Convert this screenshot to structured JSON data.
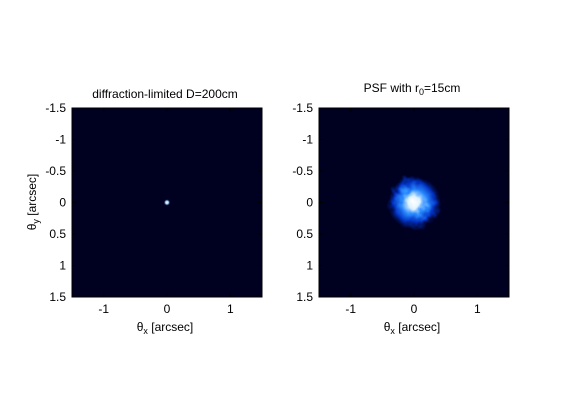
{
  "chart_data": [
    {
      "type": "heatmap",
      "title": "diffraction-limited D=200cm",
      "xlabel": "θx [arcsec]",
      "ylabel": "θy [arcsec]",
      "xlim": [
        -1.5,
        1.5
      ],
      "ylim": [
        -1.5,
        1.5
      ],
      "y_reversed": true,
      "x_ticks": [
        "-1",
        "0",
        "1"
      ],
      "y_ticks": [
        "-1.5",
        "-1",
        "-0.5",
        "0",
        "0.5",
        "1",
        "1.5"
      ],
      "colormap": "black-to-blue-to-white",
      "peak_center": [
        0,
        0
      ],
      "core_radius_arcsec": 0.03
    },
    {
      "type": "heatmap",
      "title": "PSF with r0=15cm",
      "xlabel": "θx [arcsec]",
      "ylabel": "",
      "xlim": [
        -1.5,
        1.5
      ],
      "ylim": [
        -1.5,
        1.5
      ],
      "y_reversed": true,
      "x_ticks": [
        "-1",
        "0",
        "1"
      ],
      "y_ticks": [
        "-1.5",
        "-1",
        "-0.5",
        "0",
        "0.5",
        "1",
        "1.5"
      ],
      "colormap": "black-to-blue-to-white",
      "peak_center": [
        0,
        0
      ],
      "core_radius_arcsec": 0.45
    }
  ],
  "colors": {
    "background": "#000020",
    "mid": "#0050ff",
    "peak": "#ffffff"
  }
}
